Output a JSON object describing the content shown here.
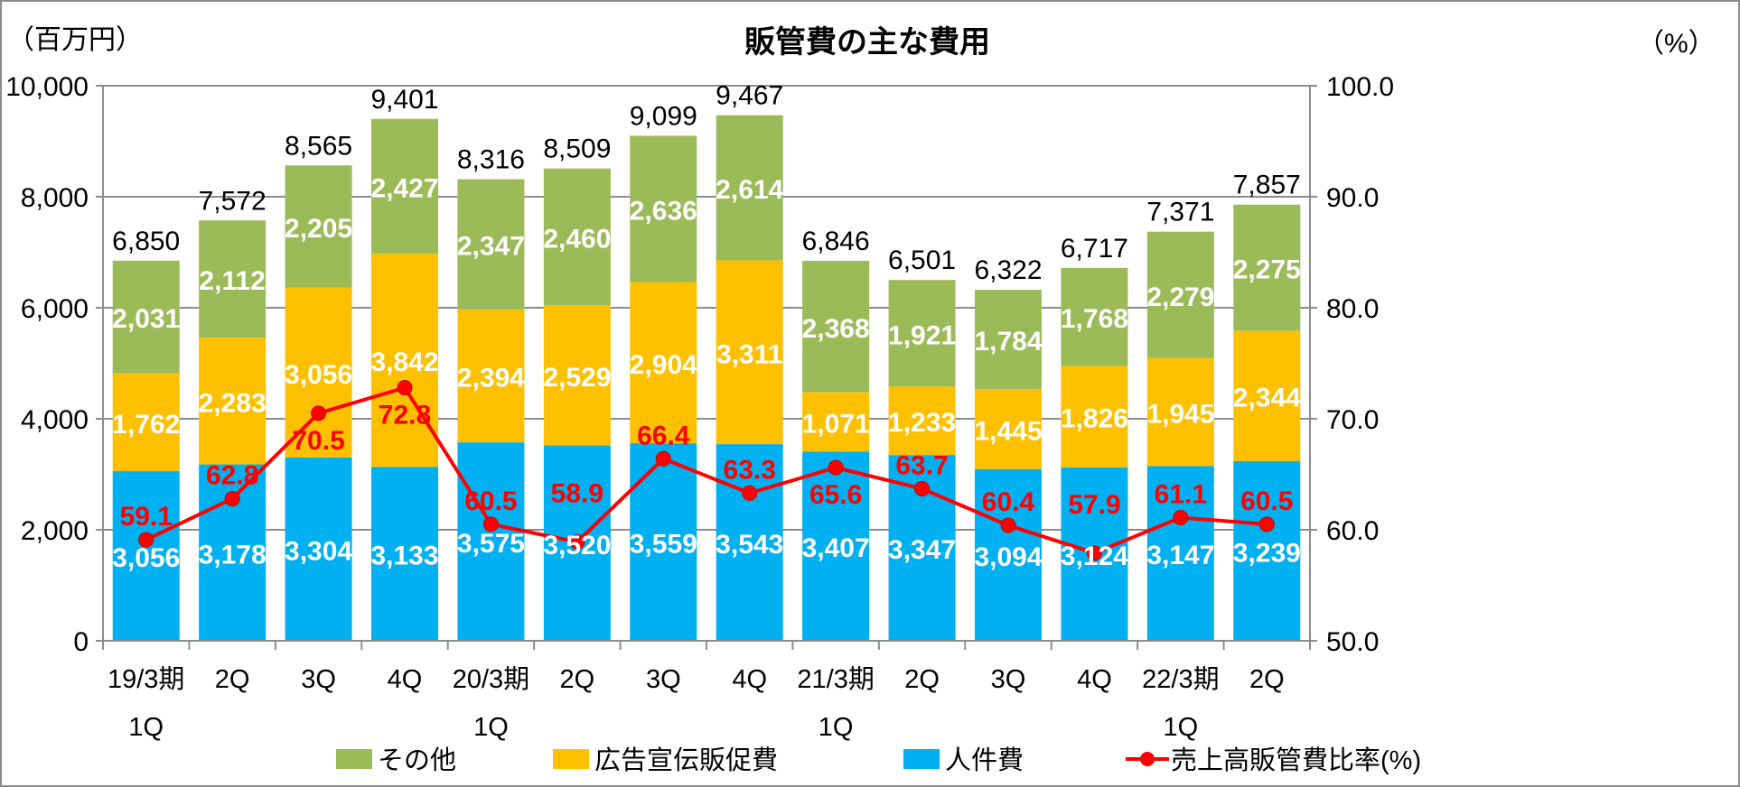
{
  "chart_data": {
    "type": "bar",
    "stacked": true,
    "title": "販管費の主な費用",
    "ylabel": "（百万円）",
    "y2label": "（%）",
    "ylim": [
      0,
      10000
    ],
    "y2lim": [
      50,
      100
    ],
    "yticks": [
      "0",
      "2,000",
      "4,000",
      "6,000",
      "8,000",
      "10,000"
    ],
    "y2ticks": [
      "50.0",
      "60.0",
      "70.0",
      "80.0",
      "90.0",
      "100.0"
    ],
    "grid": true,
    "legend_position": "bottom",
    "categories": [
      [
        "19/3期",
        "1Q"
      ],
      [
        "2Q",
        ""
      ],
      [
        "3Q",
        ""
      ],
      [
        "4Q",
        ""
      ],
      [
        "20/3期",
        "1Q"
      ],
      [
        "2Q",
        ""
      ],
      [
        "3Q",
        ""
      ],
      [
        "4Q",
        ""
      ],
      [
        "21/3期",
        "1Q"
      ],
      [
        "2Q",
        ""
      ],
      [
        "3Q",
        ""
      ],
      [
        "4Q",
        ""
      ],
      [
        "22/3期",
        "1Q"
      ],
      [
        "2Q",
        ""
      ]
    ],
    "series": [
      {
        "name": "人件費",
        "color": "#00B0F0",
        "values": [
          3056,
          3178,
          3304,
          3133,
          3575,
          3520,
          3559,
          3543,
          3407,
          3347,
          3094,
          3124,
          3147,
          3239
        ],
        "labels": [
          "3,056",
          "3,178",
          "3,304",
          "3,133",
          "3,575",
          "3,520",
          "3,559",
          "3,543",
          "3,407",
          "3,347",
          "3,094",
          "3,124",
          "3,147",
          "3,239"
        ]
      },
      {
        "name": "広告宣伝販促費",
        "color": "#FFC000",
        "values": [
          1762,
          2283,
          3056,
          3842,
          2394,
          2529,
          2904,
          3311,
          1071,
          1233,
          1445,
          1826,
          1945,
          2344
        ],
        "labels": [
          "1,762",
          "2,283",
          "3,056",
          "3,842",
          "2,394",
          "2,529",
          "2,904",
          "3,311",
          "1,071",
          "1,233",
          "1,445",
          "1,826",
          "1,945",
          "2,344"
        ]
      },
      {
        "name": "その他",
        "color": "#9BBB59",
        "values": [
          2031,
          2112,
          2205,
          2427,
          2347,
          2460,
          2636,
          2614,
          2368,
          1921,
          1784,
          1768,
          2279,
          2275
        ],
        "labels": [
          "2,031",
          "2,112",
          "2,205",
          "2,427",
          "2,347",
          "2,460",
          "2,636",
          "2,614",
          "2,368",
          "1,921",
          "1,784",
          "1,768",
          "2,279",
          "2,275"
        ]
      }
    ],
    "totals": [
      6850,
      7572,
      8565,
      9401,
      8316,
      8509,
      9099,
      9467,
      6846,
      6501,
      6322,
      6717,
      7371,
      7857
    ],
    "total_labels": [
      "6,850",
      "7,572",
      "8,565",
      "9,401",
      "8,316",
      "8,509",
      "9,099",
      "9,467",
      "6,846",
      "6,501",
      "6,322",
      "6,717",
      "7,371",
      "7,857"
    ],
    "line": {
      "name": "売上高販管費比率(%)",
      "color": "#FF0000",
      "axis": "right",
      "values": [
        59.1,
        62.8,
        70.5,
        72.8,
        60.5,
        58.9,
        66.4,
        63.3,
        65.6,
        63.7,
        60.4,
        57.9,
        61.1,
        60.5
      ],
      "labels": [
        "59.1",
        "62.8",
        "70.5",
        "72.8",
        "60.5",
        "58.9",
        "66.4",
        "63.3",
        "65.6",
        "63.7",
        "60.4",
        "57.9",
        "61.1",
        "60.5"
      ]
    },
    "legend": [
      "その他",
      "広告宣伝販促費",
      "人件費",
      "売上高販管費比率(%)"
    ]
  }
}
